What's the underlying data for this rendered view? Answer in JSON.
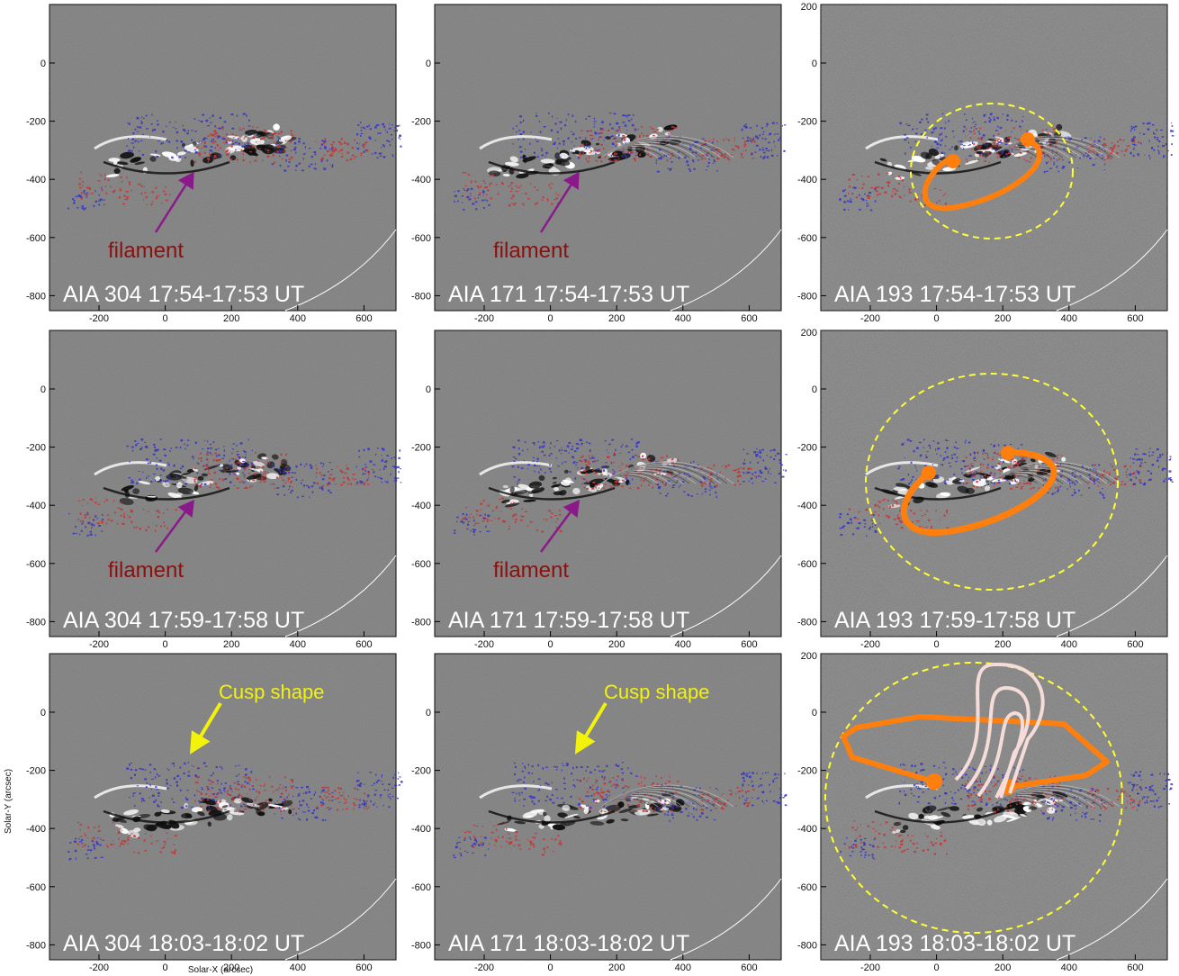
{
  "figure": {
    "x_axis_label": "Solar-X (arcsec)",
    "y_axis_label": "Solar-Y (arcsec)",
    "x_ticks": [
      "-200",
      "0",
      "200",
      "400",
      "600"
    ],
    "y_ticks": [
      "0",
      "-200",
      "-400",
      "-600",
      "-800"
    ],
    "y_tick_top_right": "200",
    "filament_label": "filament",
    "cusp_label": "Cusp shape",
    "colors": {
      "background": "#7f7f7f",
      "positive_polarity": "#c83232",
      "negative_polarity": "#3232c8",
      "arrow": "#8a1a8a",
      "filament_text": "#8b1010",
      "cusp_text": "#f2f20a",
      "flux_rope": "#ff7f0e",
      "cme_front": "#ffff33",
      "cusp_loops": "#f5dcd8",
      "limb": "#ffffff"
    }
  },
  "panels": [
    {
      "id": "r1c1",
      "title": "AIA 304 17:54-17:53 UT"
    },
    {
      "id": "r1c2",
      "title": "AIA 171 17:54-17:53 UT"
    },
    {
      "id": "r1c3",
      "title": "AIA 193 17:54-17:53 UT"
    },
    {
      "id": "r2c1",
      "title": "AIA 304 17:59-17:58 UT"
    },
    {
      "id": "r2c2",
      "title": "AIA 171 17:59-17:58 UT"
    },
    {
      "id": "r2c3",
      "title": "AIA 193 17:59-17:58 UT"
    },
    {
      "id": "r3c1",
      "title": "AIA 304 18:03-18:02 UT"
    },
    {
      "id": "r3c2",
      "title": "AIA 171 18:03-18:02 UT"
    },
    {
      "id": "r3c3",
      "title": "AIA 193 18:03-18:02 UT"
    }
  ]
}
